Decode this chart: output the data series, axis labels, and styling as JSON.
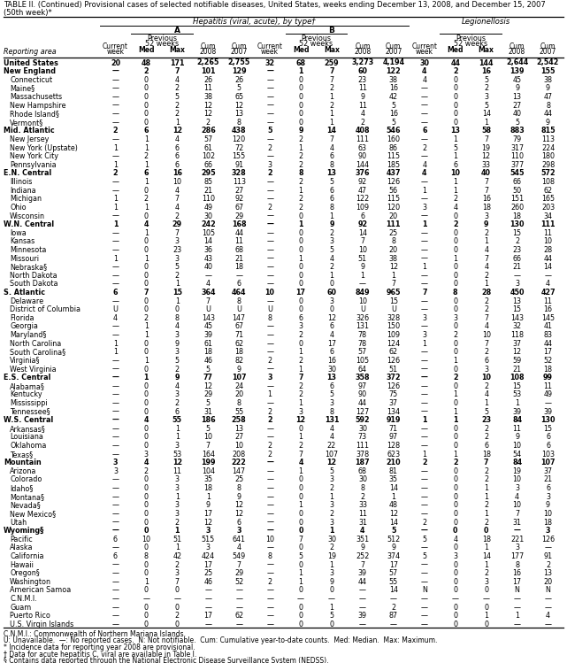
{
  "title_line1": "TABLE II. (Continued) Provisional cases of selected notifiable diseases, United States, weeks ending December 13, 2008, and December 15, 2007",
  "title_line2": "(50th week)*",
  "col_groups": [
    "Hepatitis (viral, acute), by type†",
    "Legionellosis"
  ],
  "rows": [
    [
      "United States",
      "20",
      "48",
      "171",
      "2,265",
      "2,755",
      "32",
      "68",
      "259",
      "3,273",
      "4,194",
      "30",
      "44",
      "144",
      "2,644",
      "2,542"
    ],
    [
      "New England",
      "—",
      "2",
      "7",
      "101",
      "129",
      "—",
      "1",
      "7",
      "60",
      "122",
      "4",
      "2",
      "16",
      "139",
      "155"
    ],
    [
      "Connecticut",
      "—",
      "0",
      "4",
      "26",
      "26",
      "—",
      "0",
      "7",
      "23",
      "38",
      "4",
      "0",
      "5",
      "45",
      "38"
    ],
    [
      "Maine§",
      "—",
      "0",
      "2",
      "11",
      "5",
      "—",
      "0",
      "2",
      "11",
      "16",
      "—",
      "0",
      "2",
      "9",
      "9"
    ],
    [
      "Massachusetts",
      "—",
      "0",
      "5",
      "38",
      "65",
      "—",
      "0",
      "1",
      "9",
      "42",
      "—",
      "0",
      "3",
      "13",
      "47"
    ],
    [
      "New Hampshire",
      "—",
      "0",
      "2",
      "12",
      "12",
      "—",
      "0",
      "2",
      "11",
      "5",
      "—",
      "0",
      "5",
      "27",
      "8"
    ],
    [
      "Rhode Island§",
      "—",
      "0",
      "2",
      "12",
      "13",
      "—",
      "0",
      "1",
      "4",
      "16",
      "—",
      "0",
      "14",
      "40",
      "44"
    ],
    [
      "Vermont§",
      "—",
      "0",
      "1",
      "2",
      "8",
      "—",
      "0",
      "1",
      "2",
      "5",
      "—",
      "0",
      "1",
      "5",
      "9"
    ],
    [
      "Mid. Atlantic",
      "2",
      "6",
      "12",
      "286",
      "438",
      "5",
      "9",
      "14",
      "408",
      "546",
      "6",
      "13",
      "58",
      "883",
      "815"
    ],
    [
      "New Jersey",
      "—",
      "1",
      "4",
      "57",
      "120",
      "—",
      "2",
      "7",
      "111",
      "160",
      "—",
      "1",
      "7",
      "79",
      "113"
    ],
    [
      "New York (Upstate)",
      "1",
      "1",
      "6",
      "61",
      "72",
      "2",
      "1",
      "4",
      "63",
      "86",
      "2",
      "5",
      "19",
      "317",
      "224"
    ],
    [
      "New York City",
      "—",
      "2",
      "6",
      "102",
      "155",
      "—",
      "2",
      "6",
      "90",
      "115",
      "—",
      "1",
      "12",
      "110",
      "180"
    ],
    [
      "Pennsylvania",
      "1",
      "1",
      "6",
      "66",
      "91",
      "3",
      "2",
      "8",
      "144",
      "185",
      "4",
      "6",
      "33",
      "377",
      "298"
    ],
    [
      "E.N. Central",
      "2",
      "6",
      "16",
      "295",
      "328",
      "2",
      "8",
      "13",
      "376",
      "437",
      "4",
      "10",
      "40",
      "545",
      "572"
    ],
    [
      "Illinois",
      "—",
      "1",
      "10",
      "85",
      "113",
      "—",
      "2",
      "5",
      "92",
      "126",
      "—",
      "1",
      "7",
      "66",
      "108"
    ],
    [
      "Indiana",
      "—",
      "0",
      "4",
      "21",
      "27",
      "—",
      "1",
      "6",
      "47",
      "56",
      "1",
      "1",
      "7",
      "50",
      "62"
    ],
    [
      "Michigan",
      "1",
      "2",
      "7",
      "110",
      "92",
      "—",
      "2",
      "6",
      "122",
      "115",
      "—",
      "2",
      "16",
      "151",
      "165"
    ],
    [
      "Ohio",
      "1",
      "1",
      "4",
      "49",
      "67",
      "2",
      "2",
      "8",
      "109",
      "120",
      "3",
      "4",
      "18",
      "260",
      "203"
    ],
    [
      "Wisconsin",
      "—",
      "0",
      "2",
      "30",
      "29",
      "—",
      "0",
      "1",
      "6",
      "20",
      "—",
      "0",
      "3",
      "18",
      "34"
    ],
    [
      "W.N. Central",
      "1",
      "4",
      "29",
      "242",
      "168",
      "—",
      "1",
      "9",
      "92",
      "111",
      "1",
      "2",
      "9",
      "130",
      "111"
    ],
    [
      "Iowa",
      "—",
      "1",
      "7",
      "105",
      "44",
      "—",
      "0",
      "2",
      "14",
      "25",
      "—",
      "0",
      "2",
      "15",
      "11"
    ],
    [
      "Kansas",
      "—",
      "0",
      "3",
      "14",
      "11",
      "—",
      "0",
      "3",
      "7",
      "8",
      "—",
      "0",
      "1",
      "2",
      "10"
    ],
    [
      "Minnesota",
      "—",
      "0",
      "23",
      "36",
      "68",
      "—",
      "0",
      "5",
      "10",
      "20",
      "—",
      "0",
      "4",
      "23",
      "28"
    ],
    [
      "Missouri",
      "1",
      "1",
      "3",
      "43",
      "21",
      "—",
      "1",
      "4",
      "51",
      "38",
      "—",
      "1",
      "7",
      "66",
      "44"
    ],
    [
      "Nebraska§",
      "—",
      "0",
      "5",
      "40",
      "18",
      "—",
      "0",
      "2",
      "9",
      "12",
      "1",
      "0",
      "4",
      "21",
      "14"
    ],
    [
      "North Dakota",
      "—",
      "0",
      "2",
      "—",
      "—",
      "—",
      "0",
      "1",
      "1",
      "1",
      "—",
      "0",
      "2",
      "—",
      "—"
    ],
    [
      "South Dakota",
      "—",
      "0",
      "1",
      "4",
      "6",
      "—",
      "0",
      "0",
      "—",
      "7",
      "—",
      "0",
      "1",
      "3",
      "4"
    ],
    [
      "S. Atlantic",
      "6",
      "7",
      "15",
      "364",
      "464",
      "10",
      "17",
      "60",
      "849",
      "965",
      "7",
      "8",
      "28",
      "450",
      "427"
    ],
    [
      "Delaware",
      "—",
      "0",
      "1",
      "7",
      "8",
      "—",
      "0",
      "3",
      "10",
      "15",
      "—",
      "0",
      "2",
      "13",
      "11"
    ],
    [
      "District of Columbia",
      "U",
      "0",
      "0",
      "U",
      "U",
      "U",
      "0",
      "0",
      "U",
      "U",
      "—",
      "0",
      "2",
      "15",
      "16"
    ],
    [
      "Florida",
      "4",
      "2",
      "8",
      "143",
      "147",
      "8",
      "6",
      "12",
      "326",
      "328",
      "3",
      "3",
      "7",
      "143",
      "145"
    ],
    [
      "Georgia",
      "—",
      "1",
      "4",
      "45",
      "67",
      "—",
      "3",
      "6",
      "131",
      "150",
      "—",
      "0",
      "4",
      "32",
      "41"
    ],
    [
      "Maryland§",
      "—",
      "1",
      "3",
      "39",
      "71",
      "—",
      "2",
      "4",
      "78",
      "109",
      "3",
      "2",
      "10",
      "118",
      "83"
    ],
    [
      "North Carolina",
      "1",
      "0",
      "9",
      "61",
      "62",
      "—",
      "0",
      "17",
      "78",
      "124",
      "1",
      "0",
      "7",
      "37",
      "44"
    ],
    [
      "South Carolina§",
      "1",
      "0",
      "3",
      "18",
      "18",
      "—",
      "1",
      "6",
      "57",
      "62",
      "—",
      "0",
      "2",
      "12",
      "17"
    ],
    [
      "Virginia§",
      "—",
      "1",
      "5",
      "46",
      "82",
      "2",
      "2",
      "16",
      "105",
      "126",
      "—",
      "1",
      "6",
      "59",
      "52"
    ],
    [
      "West Virginia",
      "—",
      "0",
      "2",
      "5",
      "9",
      "—",
      "1",
      "30",
      "64",
      "51",
      "—",
      "0",
      "3",
      "21",
      "18"
    ],
    [
      "E.S. Central",
      "—",
      "1",
      "9",
      "77",
      "107",
      "3",
      "7",
      "13",
      "358",
      "372",
      "—",
      "2",
      "10",
      "108",
      "99"
    ],
    [
      "Alabama§",
      "—",
      "0",
      "4",
      "12",
      "24",
      "—",
      "2",
      "6",
      "97",
      "126",
      "—",
      "0",
      "2",
      "15",
      "11"
    ],
    [
      "Kentucky",
      "—",
      "0",
      "3",
      "29",
      "20",
      "1",
      "2",
      "5",
      "90",
      "75",
      "—",
      "1",
      "4",
      "53",
      "49"
    ],
    [
      "Mississippi",
      "—",
      "0",
      "2",
      "5",
      "8",
      "—",
      "1",
      "3",
      "44",
      "37",
      "—",
      "0",
      "1",
      "1",
      "—"
    ],
    [
      "Tennessee§",
      "—",
      "0",
      "6",
      "31",
      "55",
      "2",
      "3",
      "8",
      "127",
      "134",
      "—",
      "1",
      "5",
      "39",
      "39"
    ],
    [
      "W.S. Central",
      "—",
      "4",
      "55",
      "186",
      "258",
      "2",
      "12",
      "131",
      "592",
      "919",
      "1",
      "1",
      "23",
      "84",
      "130"
    ],
    [
      "Arkansas§",
      "—",
      "0",
      "1",
      "5",
      "13",
      "—",
      "0",
      "4",
      "30",
      "71",
      "—",
      "0",
      "2",
      "11",
      "15"
    ],
    [
      "Louisiana",
      "—",
      "0",
      "1",
      "10",
      "27",
      "—",
      "1",
      "4",
      "73",
      "97",
      "—",
      "0",
      "2",
      "9",
      "6"
    ],
    [
      "Oklahoma",
      "—",
      "0",
      "3",
      "7",
      "10",
      "2",
      "2",
      "22",
      "111",
      "128",
      "—",
      "0",
      "6",
      "10",
      "6"
    ],
    [
      "Texas§",
      "—",
      "3",
      "53",
      "164",
      "208",
      "2",
      "7",
      "107",
      "378",
      "623",
      "1",
      "1",
      "18",
      "54",
      "103"
    ],
    [
      "Mountain",
      "3",
      "4",
      "12",
      "199",
      "222",
      "—",
      "4",
      "12",
      "187",
      "210",
      "2",
      "2",
      "7",
      "84",
      "107"
    ],
    [
      "Arizona",
      "3",
      "2",
      "11",
      "104",
      "147",
      "—",
      "1",
      "5",
      "68",
      "81",
      "—",
      "0",
      "2",
      "19",
      "37"
    ],
    [
      "Colorado",
      "—",
      "0",
      "3",
      "35",
      "25",
      "—",
      "0",
      "3",
      "30",
      "35",
      "—",
      "0",
      "2",
      "10",
      "21"
    ],
    [
      "Idaho§",
      "—",
      "0",
      "3",
      "18",
      "8",
      "—",
      "0",
      "2",
      "8",
      "14",
      "—",
      "0",
      "1",
      "3",
      "6"
    ],
    [
      "Montana§",
      "—",
      "0",
      "1",
      "1",
      "9",
      "—",
      "0",
      "1",
      "2",
      "1",
      "—",
      "0",
      "1",
      "4",
      "3"
    ],
    [
      "Nevada§",
      "—",
      "0",
      "3",
      "9",
      "12",
      "—",
      "1",
      "3",
      "33",
      "48",
      "—",
      "0",
      "2",
      "10",
      "9"
    ],
    [
      "New Mexico§",
      "—",
      "0",
      "3",
      "17",
      "12",
      "—",
      "0",
      "2",
      "11",
      "12",
      "—",
      "0",
      "1",
      "7",
      "10"
    ],
    [
      "Utah",
      "—",
      "0",
      "2",
      "12",
      "6",
      "—",
      "0",
      "3",
      "31",
      "14",
      "2",
      "0",
      "2",
      "31",
      "18"
    ],
    [
      "Wyoming§",
      "—",
      "0",
      "1",
      "3",
      "3",
      "—",
      "0",
      "1",
      "4",
      "5",
      "—",
      "0",
      "0",
      "—",
      "3"
    ],
    [
      "Pacific",
      "6",
      "10",
      "51",
      "515",
      "641",
      "10",
      "7",
      "30",
      "351",
      "512",
      "5",
      "4",
      "18",
      "221",
      "126"
    ],
    [
      "Alaska",
      "—",
      "0",
      "1",
      "3",
      "4",
      "—",
      "0",
      "2",
      "9",
      "9",
      "—",
      "0",
      "1",
      "3",
      "—"
    ],
    [
      "California",
      "6",
      "8",
      "42",
      "424",
      "549",
      "8",
      "5",
      "19",
      "252",
      "374",
      "5",
      "3",
      "14",
      "177",
      "91"
    ],
    [
      "Hawaii",
      "—",
      "0",
      "2",
      "17",
      "7",
      "—",
      "0",
      "1",
      "7",
      "17",
      "—",
      "0",
      "1",
      "8",
      "2"
    ],
    [
      "Oregon§",
      "—",
      "0",
      "3",
      "25",
      "29",
      "—",
      "1",
      "3",
      "39",
      "57",
      "—",
      "0",
      "2",
      "16",
      "13"
    ],
    [
      "Washington",
      "—",
      "1",
      "7",
      "46",
      "52",
      "2",
      "1",
      "9",
      "44",
      "55",
      "—",
      "0",
      "3",
      "17",
      "20"
    ],
    [
      "American Samoa",
      "—",
      "0",
      "0",
      "—",
      "—",
      "—",
      "0",
      "0",
      "—",
      "14",
      "N",
      "0",
      "0",
      "N",
      "N"
    ],
    [
      "C.N.M.I.",
      "—",
      "—",
      "—",
      "—",
      "—",
      "—",
      "—",
      "—",
      "—",
      "—",
      "—",
      "—",
      "—",
      "—",
      "—"
    ],
    [
      "Guam",
      "—",
      "0",
      "0",
      "—",
      "—",
      "—",
      "0",
      "1",
      "—",
      "2",
      "—",
      "0",
      "0",
      "—",
      "—"
    ],
    [
      "Puerto Rico",
      "—",
      "0",
      "2",
      "17",
      "62",
      "—",
      "0",
      "5",
      "39",
      "87",
      "—",
      "0",
      "1",
      "1",
      "4"
    ],
    [
      "U.S. Virgin Islands",
      "—",
      "0",
      "0",
      "—",
      "—",
      "—",
      "0",
      "0",
      "—",
      "—",
      "—",
      "0",
      "0",
      "—",
      "—"
    ]
  ],
  "bold_rows": [
    0,
    1,
    8,
    13,
    19,
    27,
    37,
    42,
    47,
    55
  ],
  "footnotes": [
    "C.N.M.I.: Commonwealth of Northern Mariana Islands.",
    "U: Unavailable.  —: No reported cases.  N: Not notifiable.  Cum: Cumulative year-to-date counts.  Med: Median.  Max: Maximum.",
    "* Incidence data for reporting year 2008 are provisional.",
    "† Data for acute hepatitis C, viral are available in Table I.",
    "§ Contains data reported through the National Electronic Disease Surveillance System (NEDSS)."
  ]
}
